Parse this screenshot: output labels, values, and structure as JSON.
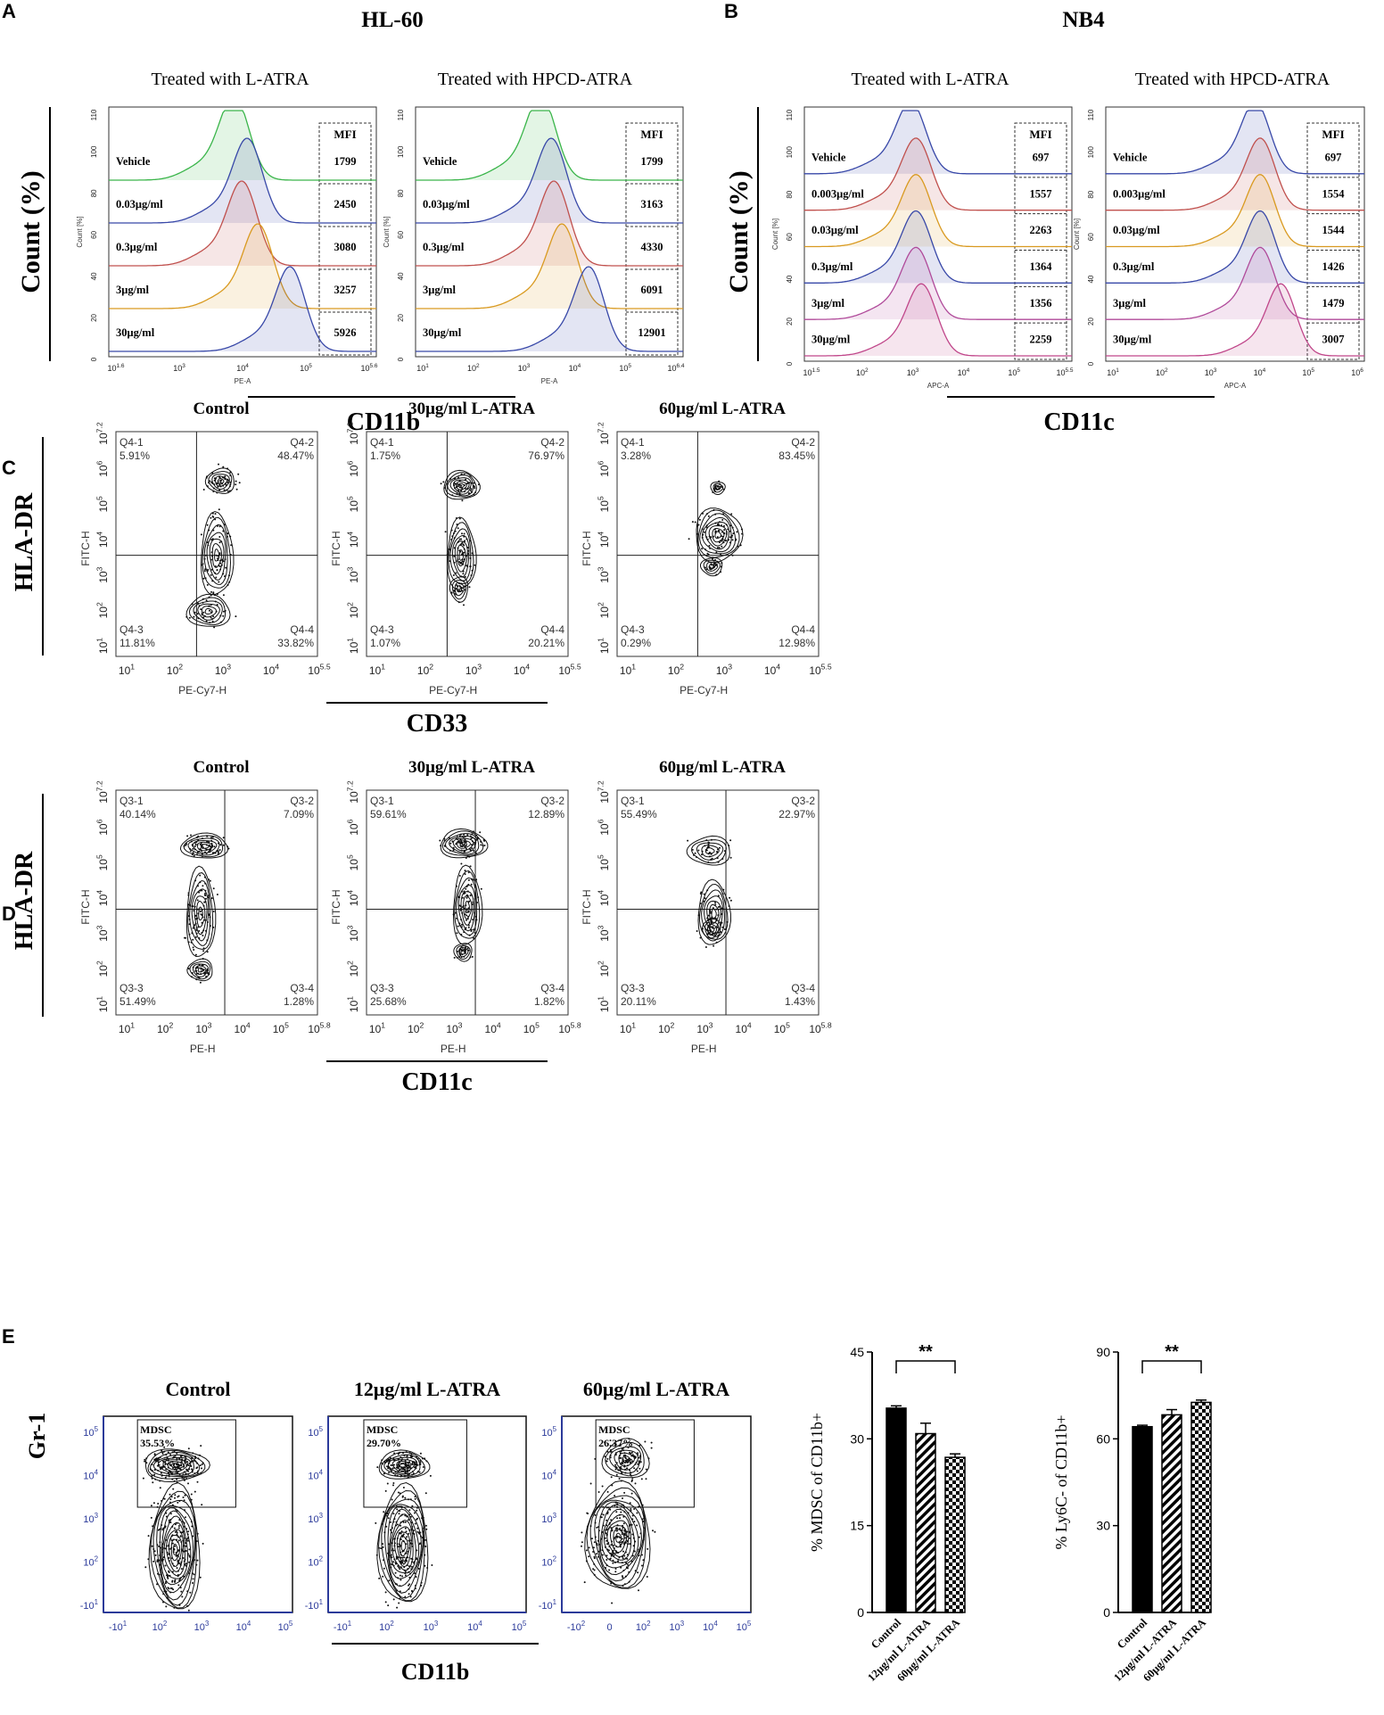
{
  "panel_letters": {
    "A": "A",
    "B": "B",
    "C": "C",
    "D": "D",
    "E": "E"
  },
  "hist_panels": [
    {
      "id": "hl60",
      "cell_line": "HL-60",
      "marker": "CD11b",
      "ylabel": "Count (%)",
      "subpanels": [
        {
          "title": "Treated with L-ATRA",
          "xaxis": "PE-A",
          "yaxis": "Count [%]",
          "xticks": [
            "10^1.6",
            "10^3",
            "10^4",
            "10^5",
            "10^5.6"
          ],
          "yticks": [
            "0",
            "20",
            "40",
            "60",
            "80",
            "100",
            "110"
          ],
          "rows": [
            {
              "label": "Vehicle",
              "mfi": 1799,
              "color": "#3ab54a",
              "peak": 0.47
            },
            {
              "label": "0.03μg/ml",
              "mfi": 2450,
              "color": "#3848a8",
              "peak": 0.52
            },
            {
              "label": "0.3μg/ml",
              "mfi": 3080,
              "color": "#c0504d",
              "peak": 0.5
            },
            {
              "label": "3μg/ml",
              "mfi": 3257,
              "color": "#d99a20",
              "peak": 0.56
            },
            {
              "label": "30μg/ml",
              "mfi": 5926,
              "color": "#3848a8",
              "peak": 0.68
            }
          ]
        },
        {
          "title": "Treated with HPCD-ATRA",
          "xaxis": "PE-A",
          "yaxis": "Count [%]",
          "xticks": [
            "10^1",
            "10^2",
            "10^3",
            "10^4",
            "10^5",
            "10^6.4"
          ],
          "yticks": [
            "0",
            "20",
            "40",
            "60",
            "80",
            "100",
            "110"
          ],
          "rows": [
            {
              "label": "Vehicle",
              "mfi": 1799,
              "color": "#3ab54a",
              "peak": 0.47
            },
            {
              "label": "0.03μg/ml",
              "mfi": 3163,
              "color": "#3848a8",
              "peak": 0.51
            },
            {
              "label": "0.3μg/ml",
              "mfi": 4330,
              "color": "#c0504d",
              "peak": 0.52
            },
            {
              "label": "3μg/ml",
              "mfi": 6091,
              "color": "#d99a20",
              "peak": 0.55
            },
            {
              "label": "30μg/ml",
              "mfi": 12901,
              "color": "#3848a8",
              "peak": 0.65
            }
          ]
        }
      ]
    },
    {
      "id": "nb4",
      "cell_line": "NB4",
      "marker": "CD11c",
      "ylabel": "Count (%)",
      "subpanels": [
        {
          "title": "Treated with L-ATRA",
          "xaxis": "APC-A",
          "yaxis": "Count [%]",
          "xticks": [
            "10^1.5",
            "10^2",
            "10^3",
            "10^4",
            "10^5",
            "10^5.5"
          ],
          "yticks": [
            "0",
            "20",
            "40",
            "60",
            "80",
            "100",
            "110"
          ],
          "rows": [
            {
              "label": "Vehicle",
              "mfi": 697,
              "color": "#3848a8",
              "peak": 0.4
            },
            {
              "label": "0.003μg/ml",
              "mfi": 1557,
              "color": "#c0504d",
              "peak": 0.42
            },
            {
              "label": "0.03μg/ml",
              "mfi": 2263,
              "color": "#d99a20",
              "peak": 0.42
            },
            {
              "label": "0.3μg/ml",
              "mfi": 1364,
              "color": "#3848a8",
              "peak": 0.42
            },
            {
              "label": "3μg/ml",
              "mfi": 1356,
              "color": "#b04a9a",
              "peak": 0.42
            },
            {
              "label": "30μg/ml",
              "mfi": 2259,
              "color": "#c0468a",
              "peak": 0.44
            }
          ]
        },
        {
          "title": "Treated with HPCD-ATRA",
          "xaxis": "APC-A",
          "yaxis": "Count [%]",
          "xticks": [
            "10^1",
            "10^2",
            "10^3",
            "10^4",
            "10^5",
            "10^6"
          ],
          "yticks": [
            "0",
            "20",
            "40",
            "60",
            "80",
            "100",
            "110"
          ],
          "rows": [
            {
              "label": "Vehicle",
              "mfi": 697,
              "color": "#3848a8",
              "peak": 0.58
            },
            {
              "label": "0.003μg/ml",
              "mfi": 1554,
              "color": "#c0504d",
              "peak": 0.6
            },
            {
              "label": "0.03μg/ml",
              "mfi": 1544,
              "color": "#d99a20",
              "peak": 0.6
            },
            {
              "label": "0.3μg/ml",
              "mfi": 1426,
              "color": "#3848a8",
              "peak": 0.6
            },
            {
              "label": "3μg/ml",
              "mfi": 1479,
              "color": "#b04a9a",
              "peak": 0.6
            },
            {
              "label": "30μg/ml",
              "mfi": 3007,
              "color": "#c0468a",
              "peak": 0.68
            }
          ]
        }
      ]
    }
  ],
  "quadrant_panels": [
    {
      "id": "C",
      "ylabel": "HLA-DR",
      "marker": "CD33",
      "xaxis": "PE-Cy7-H",
      "yaxis": "FITC-H",
      "xticks": [
        "10^1",
        "10^2",
        "10^3",
        "10^4",
        "10^5.5"
      ],
      "yticks": [
        "10^1",
        "10^2",
        "10^3",
        "10^4",
        "10^5",
        "10^6",
        "10^7.2"
      ],
      "plots": [
        {
          "title": "Control",
          "q": [
            [
              "Q4-1",
              "5.91%"
            ],
            [
              "Q4-2",
              "48.47%"
            ],
            [
              "Q4-3",
              "11.81%"
            ],
            [
              "Q4-4",
              "33.82%"
            ]
          ]
        },
        {
          "title": "30μg/ml L-ATRA",
          "q": [
            [
              "Q4-1",
              "1.75%"
            ],
            [
              "Q4-2",
              "76.97%"
            ],
            [
              "Q4-3",
              "1.07%"
            ],
            [
              "Q4-4",
              "20.21%"
            ]
          ]
        },
        {
          "title": "60μg/ml  L-ATRA",
          "q": [
            [
              "Q4-1",
              "3.28%"
            ],
            [
              "Q4-2",
              "83.45%"
            ],
            [
              "Q4-3",
              "0.29%"
            ],
            [
              "Q4-4",
              "12.98%"
            ]
          ]
        }
      ]
    },
    {
      "id": "D",
      "ylabel": "HLA-DR",
      "marker": "CD11c",
      "xaxis": "PE-H",
      "yaxis": "FITC-H",
      "xticks": [
        "10^1",
        "10^2",
        "10^3",
        "10^4",
        "10^5",
        "10^5.8"
      ],
      "yticks": [
        "10^1",
        "10^2",
        "10^3",
        "10^4",
        "10^5",
        "10^6",
        "10^7.2"
      ],
      "plots": [
        {
          "title": "Control",
          "q": [
            [
              "Q3-1",
              "40.14%"
            ],
            [
              "Q3-2",
              "7.09%"
            ],
            [
              "Q3-3",
              "51.49%"
            ],
            [
              "Q3-4",
              "1.28%"
            ]
          ]
        },
        {
          "title": "30μg/ml L-ATRA",
          "q": [
            [
              "Q3-1",
              "59.61%"
            ],
            [
              "Q3-2",
              "12.89%"
            ],
            [
              "Q3-3",
              "25.68%"
            ],
            [
              "Q3-4",
              "1.82%"
            ]
          ]
        },
        {
          "title": "60μg/ml L-ATRA",
          "q": [
            [
              "Q3-1",
              "55.49%"
            ],
            [
              "Q3-2",
              "22.97%"
            ],
            [
              "Q3-3",
              "20.11%"
            ],
            [
              "Q3-4",
              "1.43%"
            ]
          ]
        }
      ]
    }
  ],
  "panel_E": {
    "ylabel": "Gr-1",
    "marker": "CD11b",
    "gate_label": "MDSC",
    "xticks": [
      "-10^1",
      "10^2",
      "10^3",
      "10^4",
      "10^5"
    ],
    "xticks_alt": [
      "-10^2",
      "0",
      "10^2",
      "10^3",
      "10^4",
      "10^5"
    ],
    "yticks": [
      "10^5",
      "10^4",
      "10^3",
      "10^2",
      "-10^1"
    ],
    "plots": [
      {
        "title": "Control",
        "gate_value": "35.53%"
      },
      {
        "title": "12μg/ml L-ATRA",
        "gate_value": "29.70%"
      },
      {
        "title": "60μg/ml L-ATRA",
        "gate_value": "26.37%"
      }
    ]
  },
  "chart_data": [
    {
      "type": "bar",
      "title": "",
      "ylabel": "% MDSC of CD11b+",
      "categories": [
        "Control",
        "12μg/ml L-ATRA",
        "60μg/ml L-ATRA"
      ],
      "values": [
        35.3,
        30.9,
        26.8
      ],
      "errors": [
        0.4,
        1.8,
        0.6
      ],
      "patterns": [
        "solid",
        "diagonal",
        "checker"
      ],
      "ylim": [
        0,
        45
      ],
      "yticks": [
        0,
        15,
        30,
        45
      ],
      "significance": "**"
    },
    {
      "type": "bar",
      "title": "",
      "ylabel": "% Ly6C- of CD11b+",
      "categories": [
        "Control",
        "12μg/ml L-ATRA",
        "60μg/ml L-ATRA"
      ],
      "values": [
        64.2,
        68.3,
        72.6
      ],
      "errors": [
        0.5,
        1.8,
        0.8
      ],
      "patterns": [
        "solid",
        "diagonal",
        "checker"
      ],
      "ylim": [
        0,
        90
      ],
      "yticks": [
        0,
        30,
        60,
        90
      ],
      "significance": "**"
    }
  ]
}
